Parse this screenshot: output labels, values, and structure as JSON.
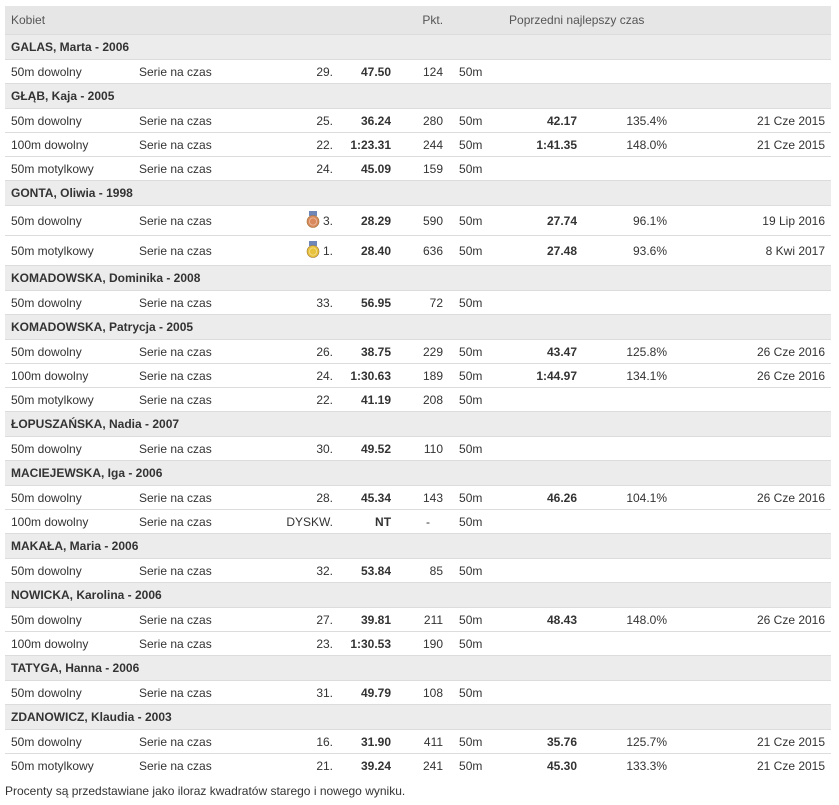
{
  "header": {
    "group": "Kobiet",
    "points": "Pkt.",
    "previous_best": "Poprzedni najlepszy czas"
  },
  "rows": [
    {
      "type": "athlete",
      "name": "GALAS, Marta - 2006"
    },
    {
      "type": "result",
      "event": "50m dowolny",
      "round": "Serie na czas",
      "place": "29.",
      "time": "47.50",
      "points": "124",
      "pool": "50m",
      "prev_time": "",
      "pct": "",
      "date": ""
    },
    {
      "type": "athlete",
      "name": "GŁĄB, Kaja - 2005"
    },
    {
      "type": "result",
      "event": "50m dowolny",
      "round": "Serie na czas",
      "place": "25.",
      "time": "36.24",
      "points": "280",
      "pool": "50m",
      "prev_time": "42.17",
      "pct": "135.4%",
      "date": "21 Cze 2015"
    },
    {
      "type": "result",
      "event": "100m dowolny",
      "round": "Serie na czas",
      "place": "22.",
      "time": "1:23.31",
      "points": "244",
      "pool": "50m",
      "prev_time": "1:41.35",
      "pct": "148.0%",
      "date": "21 Cze 2015"
    },
    {
      "type": "result",
      "event": "50m motylkowy",
      "round": "Serie na czas",
      "place": "24.",
      "time": "45.09",
      "points": "159",
      "pool": "50m",
      "prev_time": "",
      "pct": "",
      "date": ""
    },
    {
      "type": "athlete",
      "name": "GONTA, Oliwia - 1998"
    },
    {
      "type": "result",
      "event": "50m dowolny",
      "round": "Serie na czas",
      "place": "3.",
      "medal": "bronze",
      "time": "28.29",
      "points": "590",
      "pool": "50m",
      "prev_time": "27.74",
      "pct": "96.1%",
      "date": "19 Lip 2016"
    },
    {
      "type": "result",
      "event": "50m motylkowy",
      "round": "Serie na czas",
      "place": "1.",
      "medal": "gold",
      "time": "28.40",
      "points": "636",
      "pool": "50m",
      "prev_time": "27.48",
      "pct": "93.6%",
      "date": "8 Kwi 2017"
    },
    {
      "type": "athlete",
      "name": "KOMADOWSKA, Dominika - 2008"
    },
    {
      "type": "result",
      "event": "50m dowolny",
      "round": "Serie na czas",
      "place": "33.",
      "time": "56.95",
      "points": "72",
      "pool": "50m",
      "prev_time": "",
      "pct": "",
      "date": ""
    },
    {
      "type": "athlete",
      "name": "KOMADOWSKA, Patrycja - 2005"
    },
    {
      "type": "result",
      "event": "50m dowolny",
      "round": "Serie na czas",
      "place": "26.",
      "time": "38.75",
      "points": "229",
      "pool": "50m",
      "prev_time": "43.47",
      "pct": "125.8%",
      "date": "26 Cze 2016"
    },
    {
      "type": "result",
      "event": "100m dowolny",
      "round": "Serie na czas",
      "place": "24.",
      "time": "1:30.63",
      "points": "189",
      "pool": "50m",
      "prev_time": "1:44.97",
      "pct": "134.1%",
      "date": "26 Cze 2016"
    },
    {
      "type": "result",
      "event": "50m motylkowy",
      "round": "Serie na czas",
      "place": "22.",
      "time": "41.19",
      "points": "208",
      "pool": "50m",
      "prev_time": "",
      "pct": "",
      "date": ""
    },
    {
      "type": "athlete",
      "name": "ŁOPUSZAŃSKA, Nadia - 2007"
    },
    {
      "type": "result",
      "event": "50m dowolny",
      "round": "Serie na czas",
      "place": "30.",
      "time": "49.52",
      "points": "110",
      "pool": "50m",
      "prev_time": "",
      "pct": "",
      "date": ""
    },
    {
      "type": "athlete",
      "name": "MACIEJEWSKA, Iga - 2006"
    },
    {
      "type": "result",
      "event": "50m dowolny",
      "round": "Serie na czas",
      "place": "28.",
      "time": "45.34",
      "points": "143",
      "pool": "50m",
      "prev_time": "46.26",
      "pct": "104.1%",
      "date": "26 Cze 2016"
    },
    {
      "type": "result",
      "event": "100m dowolny",
      "round": "Serie na czas",
      "place": "DYSKW.",
      "time": "NT",
      "points": "-",
      "pool": "50m",
      "prev_time": "",
      "pct": "",
      "date": ""
    },
    {
      "type": "athlete",
      "name": "MAKAŁA, Maria - 2006"
    },
    {
      "type": "result",
      "event": "50m dowolny",
      "round": "Serie na czas",
      "place": "32.",
      "time": "53.84",
      "points": "85",
      "pool": "50m",
      "prev_time": "",
      "pct": "",
      "date": ""
    },
    {
      "type": "athlete",
      "name": "NOWICKA, Karolina - 2006"
    },
    {
      "type": "result",
      "event": "50m dowolny",
      "round": "Serie na czas",
      "place": "27.",
      "time": "39.81",
      "points": "211",
      "pool": "50m",
      "prev_time": "48.43",
      "pct": "148.0%",
      "date": "26 Cze 2016"
    },
    {
      "type": "result",
      "event": "100m dowolny",
      "round": "Serie na czas",
      "place": "23.",
      "time": "1:30.53",
      "points": "190",
      "pool": "50m",
      "prev_time": "",
      "pct": "",
      "date": ""
    },
    {
      "type": "athlete",
      "name": "TATYGA, Hanna - 2006"
    },
    {
      "type": "result",
      "event": "50m dowolny",
      "round": "Serie na czas",
      "place": "31.",
      "time": "49.79",
      "points": "108",
      "pool": "50m",
      "prev_time": "",
      "pct": "",
      "date": ""
    },
    {
      "type": "athlete",
      "name": "ZDANOWICZ, Klaudia - 2003"
    },
    {
      "type": "result",
      "event": "50m dowolny",
      "round": "Serie na czas",
      "place": "16.",
      "time": "31.90",
      "points": "411",
      "pool": "50m",
      "prev_time": "35.76",
      "pct": "125.7%",
      "date": "21 Cze 2015"
    },
    {
      "type": "result",
      "event": "50m motylkowy",
      "round": "Serie na czas",
      "place": "21.",
      "time": "39.24",
      "points": "241",
      "pool": "50m",
      "prev_time": "45.30",
      "pct": "133.3%",
      "date": "21 Cze 2015"
    }
  ],
  "footnote": "Procenty są przedstawiane jako iloraz kwadratów starego i nowego wyniku.",
  "colors": {
    "header_bg": "#e6e6e6",
    "athlete_bg": "#ececec",
    "gold": "#e8c23a",
    "bronze": "#d9895b",
    "ribbon": "#6f86b8"
  }
}
